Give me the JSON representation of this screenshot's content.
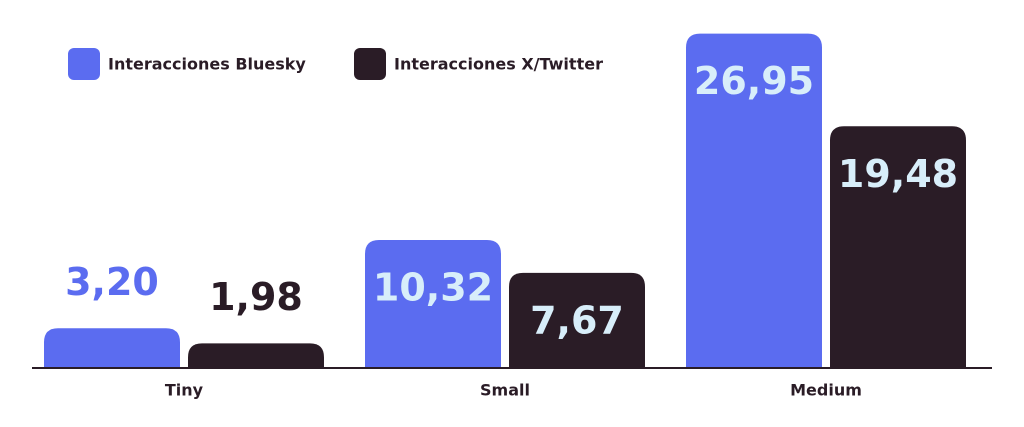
{
  "chart_data": {
    "type": "bar",
    "categories": [
      "Tiny",
      "Small",
      "Medium"
    ],
    "series": [
      {
        "name": "Interacciones Bluesky",
        "color": "#5b6cf0",
        "values": [
          3.2,
          10.32,
          26.95
        ],
        "value_labels": [
          "3,20",
          "10,32",
          "26,95"
        ]
      },
      {
        "name": "Interacciones X/Twitter",
        "color": "#2a1c26",
        "values": [
          1.98,
          7.67,
          19.48
        ],
        "value_labels": [
          "1,98",
          "7,67",
          "19,48"
        ]
      }
    ],
    "ylim": [
      0,
      27
    ]
  }
}
